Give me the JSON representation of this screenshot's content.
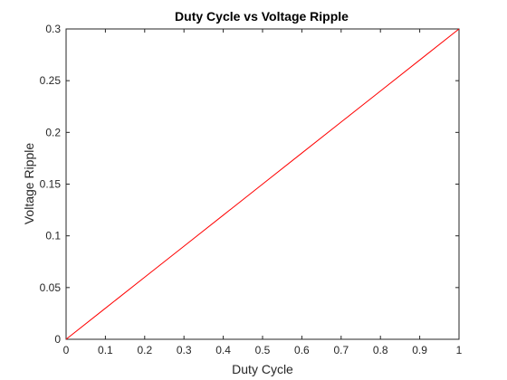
{
  "chart_data": {
    "type": "line",
    "title": "Duty Cycle vs Voltage Ripple",
    "xlabel": "Duty Cycle",
    "ylabel": "Voltage Ripple",
    "xlim": [
      0,
      1
    ],
    "ylim": [
      0,
      0.3
    ],
    "x_ticks": [
      "0",
      "0.1",
      "0.2",
      "0.3",
      "0.4",
      "0.5",
      "0.6",
      "0.7",
      "0.8",
      "0.9",
      "1"
    ],
    "y_ticks": [
      "0",
      "0.05",
      "0.1",
      "0.15",
      "0.2",
      "0.25",
      "0.3"
    ],
    "grid": false,
    "series": [
      {
        "color": "#ff0000",
        "x": [
          0,
          0.1,
          0.2,
          0.3,
          0.4,
          0.5,
          0.6,
          0.7,
          0.8,
          0.9,
          1
        ],
        "y": [
          0,
          0.03,
          0.06,
          0.09,
          0.12,
          0.15,
          0.18,
          0.21,
          0.24,
          0.27,
          0.3
        ]
      }
    ]
  }
}
